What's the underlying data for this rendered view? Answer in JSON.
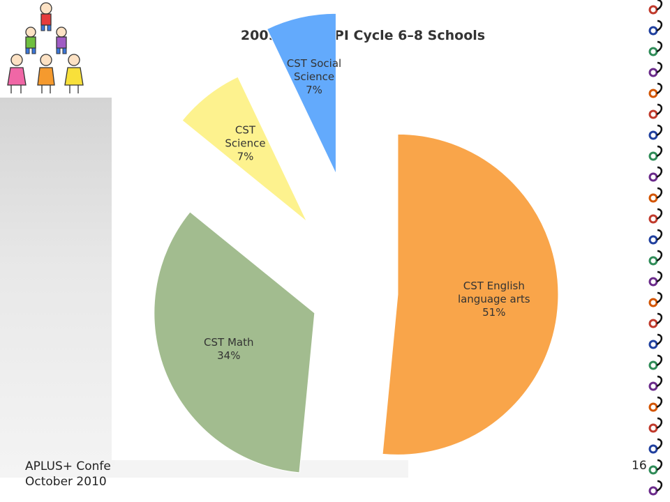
{
  "chart_data": {
    "type": "pie",
    "title": "2009/2010 API Cycle 6–8 Schools",
    "categories": [
      "CST English language arts",
      "CST Math",
      "CST Science",
      "CST Social Science"
    ],
    "values": [
      51,
      34,
      7,
      7
    ],
    "labels": [
      [
        "CST English",
        "language arts",
        "51%"
      ],
      [
        "CST Math",
        "34%"
      ],
      [
        "CST",
        "Science",
        "7%"
      ],
      [
        "CST Social",
        "Science",
        "7%"
      ]
    ],
    "colors": [
      "#f9a54a",
      "#a2bc8f",
      "#fdf28e",
      "#63aafc"
    ],
    "exploded": true
  },
  "footer": {
    "line1": "APLUS+ Confe",
    "line2": "October 2010",
    "page_number": "16"
  }
}
